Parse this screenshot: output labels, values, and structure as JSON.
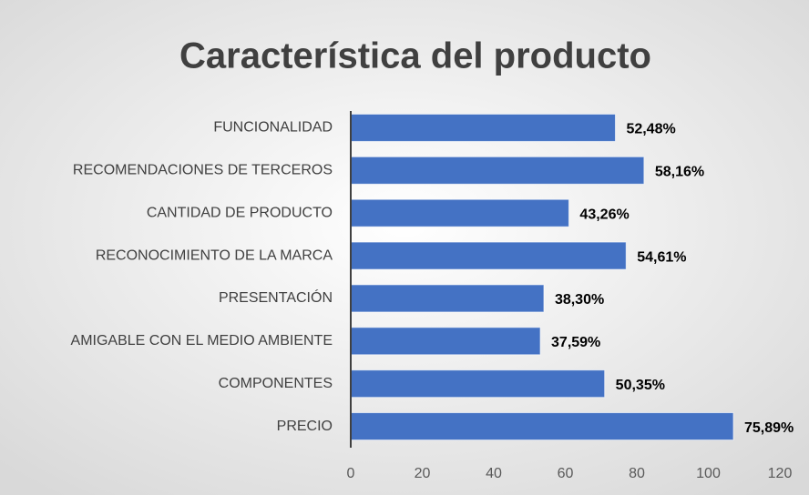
{
  "chart_data": {
    "type": "bar",
    "orientation": "horizontal",
    "title": "Característica del producto",
    "categories": [
      "FUNCIONALIDAD",
      "RECOMENDACIONES DE TERCEROS",
      "CANTIDAD DE PRODUCTO",
      "RECONOCIMIENTO DE LA MARCA",
      "PRESENTACIÓN",
      "AMIGABLE CON EL MEDIO AMBIENTE",
      "COMPONENTES",
      "PRECIO"
    ],
    "values": [
      74,
      82,
      61,
      77,
      54,
      53,
      71,
      107
    ],
    "value_labels": [
      "52,48%",
      "58,16%",
      "43,26%",
      "54,61%",
      "38,30%",
      "37,59%",
      "50,35%",
      "75,89%"
    ],
    "color": "#4472c4",
    "xlim": [
      0,
      120
    ],
    "xticks": [
      0,
      20,
      40,
      60,
      80,
      100,
      120
    ],
    "grid": false
  }
}
